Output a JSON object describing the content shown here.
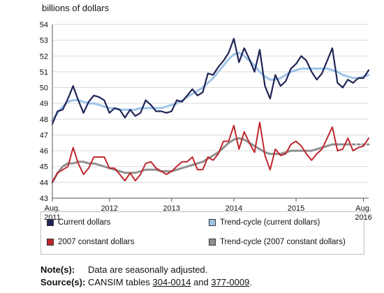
{
  "chart_data": {
    "type": "line",
    "ylabel": "billions of dollars",
    "ylim": [
      43,
      54
    ],
    "yticks": [
      "43",
      "44",
      "45",
      "46",
      "47",
      "48",
      "49",
      "50",
      "51",
      "52",
      "53",
      "54"
    ],
    "x_start": "Aug. 2011",
    "x_end": "Aug. 2016",
    "x_ticks": [
      {
        "month_index": 0,
        "line1": "Aug.",
        "line2": "2011"
      },
      {
        "month_index": 11,
        "line1": "2012",
        "line2": ""
      },
      {
        "month_index": 23,
        "line1": "2013",
        "line2": ""
      },
      {
        "month_index": 35,
        "line1": "2014",
        "line2": ""
      },
      {
        "month_index": 47,
        "line1": "2015",
        "line2": ""
      },
      {
        "month_index": 60,
        "line1": "Aug.",
        "line2": "2016"
      }
    ],
    "series": [
      {
        "name": "Current dollars",
        "color": "#1f2456",
        "style": "solid",
        "values": [
          47.7,
          48.5,
          48.6,
          49.3,
          50.1,
          49.2,
          48.4,
          49.1,
          49.5,
          49.4,
          49.2,
          48.4,
          48.7,
          48.6,
          48.1,
          48.6,
          48.2,
          48.4,
          49.2,
          48.9,
          48.5,
          48.5,
          48.4,
          48.5,
          49.2,
          49.1,
          49.5,
          49.9,
          49.5,
          49.7,
          50.9,
          50.8,
          51.3,
          51.7,
          52.2,
          53.1,
          51.6,
          52.5,
          51.8,
          51.0,
          52.4,
          50.1,
          49.3,
          50.8,
          50.1,
          50.4,
          51.2,
          51.5,
          52.0,
          51.7,
          51.0,
          50.5,
          50.9,
          51.7,
          52.5,
          50.3,
          50.0,
          50.5,
          50.3,
          50.6,
          50.6,
          51.1
        ]
      },
      {
        "name": "Trend-cycle (current dollars)",
        "color": "#9ec4e8",
        "style": "solid",
        "values": [
          47.9,
          48.4,
          48.8,
          49.1,
          49.2,
          49.2,
          49.1,
          49.0,
          49.0,
          48.9,
          48.8,
          48.7,
          48.7,
          48.6,
          48.6,
          48.6,
          48.6,
          48.7,
          48.7,
          48.7,
          48.7,
          48.7,
          48.8,
          48.9,
          49.0,
          49.2,
          49.4,
          49.6,
          49.8,
          50.0,
          50.3,
          50.6,
          51.0,
          51.4,
          51.8,
          52.1,
          52.2,
          52.0,
          51.7,
          51.4,
          51.0,
          50.7,
          50.5,
          50.5,
          50.6,
          50.8,
          51.0,
          51.1,
          51.2,
          51.2,
          51.2,
          51.2,
          51.2,
          51.2,
          51.1,
          51.0,
          50.8,
          50.7,
          50.6,
          50.6,
          50.7,
          50.8
        ]
      },
      {
        "name": "2007 constant dollars",
        "color": "#c0272d",
        "style": "solid",
        "values": [
          44.0,
          44.6,
          44.8,
          45.0,
          46.2,
          45.2,
          44.5,
          44.9,
          45.6,
          45.6,
          45.6,
          44.9,
          44.9,
          44.5,
          44.1,
          44.6,
          44.1,
          44.5,
          45.2,
          45.3,
          44.9,
          44.7,
          44.5,
          44.7,
          45.0,
          45.3,
          45.3,
          45.6,
          44.8,
          44.8,
          45.6,
          45.4,
          45.8,
          46.6,
          46.6,
          47.6,
          46.1,
          47.2,
          46.5,
          45.9,
          47.8,
          45.7,
          44.8,
          46.1,
          45.7,
          45.8,
          46.4,
          46.6,
          46.3,
          45.8,
          45.4,
          45.8,
          46.1,
          46.8,
          47.5,
          46.0,
          46.1,
          46.8,
          46.0,
          46.2,
          46.3,
          46.8
        ]
      },
      {
        "name": "Trend-cycle (2007 constant dollars)",
        "color": "#8f8f8f",
        "style": "solid",
        "dashed_tail_from": 57,
        "values": [
          44.0,
          44.6,
          45.0,
          45.2,
          45.2,
          45.3,
          45.3,
          45.2,
          45.2,
          45.1,
          45.0,
          44.9,
          44.8,
          44.7,
          44.6,
          44.6,
          44.6,
          44.7,
          44.8,
          44.8,
          44.8,
          44.7,
          44.7,
          44.7,
          44.8,
          44.9,
          45.0,
          45.1,
          45.2,
          45.3,
          45.5,
          45.7,
          45.9,
          46.2,
          46.5,
          46.7,
          46.8,
          46.7,
          46.5,
          46.3,
          46.1,
          45.9,
          45.8,
          45.8,
          45.8,
          45.9,
          46.0,
          46.0,
          46.0,
          46.0,
          46.0,
          46.1,
          46.2,
          46.3,
          46.4,
          46.4,
          46.4,
          46.4,
          46.4,
          46.4,
          46.4,
          46.4
        ]
      }
    ]
  },
  "legend": [
    {
      "label": "Current dollars",
      "color": "#1f2456"
    },
    {
      "label": "Trend-cycle (current dollars)",
      "color": "#9ec4e8"
    },
    {
      "label": "2007 constant dollars",
      "color": "#c0272d"
    },
    {
      "label": "Trend-cycle (2007 constant dollars)",
      "color": "#8f8f8f"
    }
  ],
  "notes": {
    "note_label": "Note(s):",
    "note_text": "Data are seasonally adjusted.",
    "source_label": "Source(s):",
    "source_prefix": "CANSIM tables",
    "source_link1": "304-0014",
    "source_mid": "and",
    "source_link2": "377-0009",
    "source_suffix": "."
  }
}
